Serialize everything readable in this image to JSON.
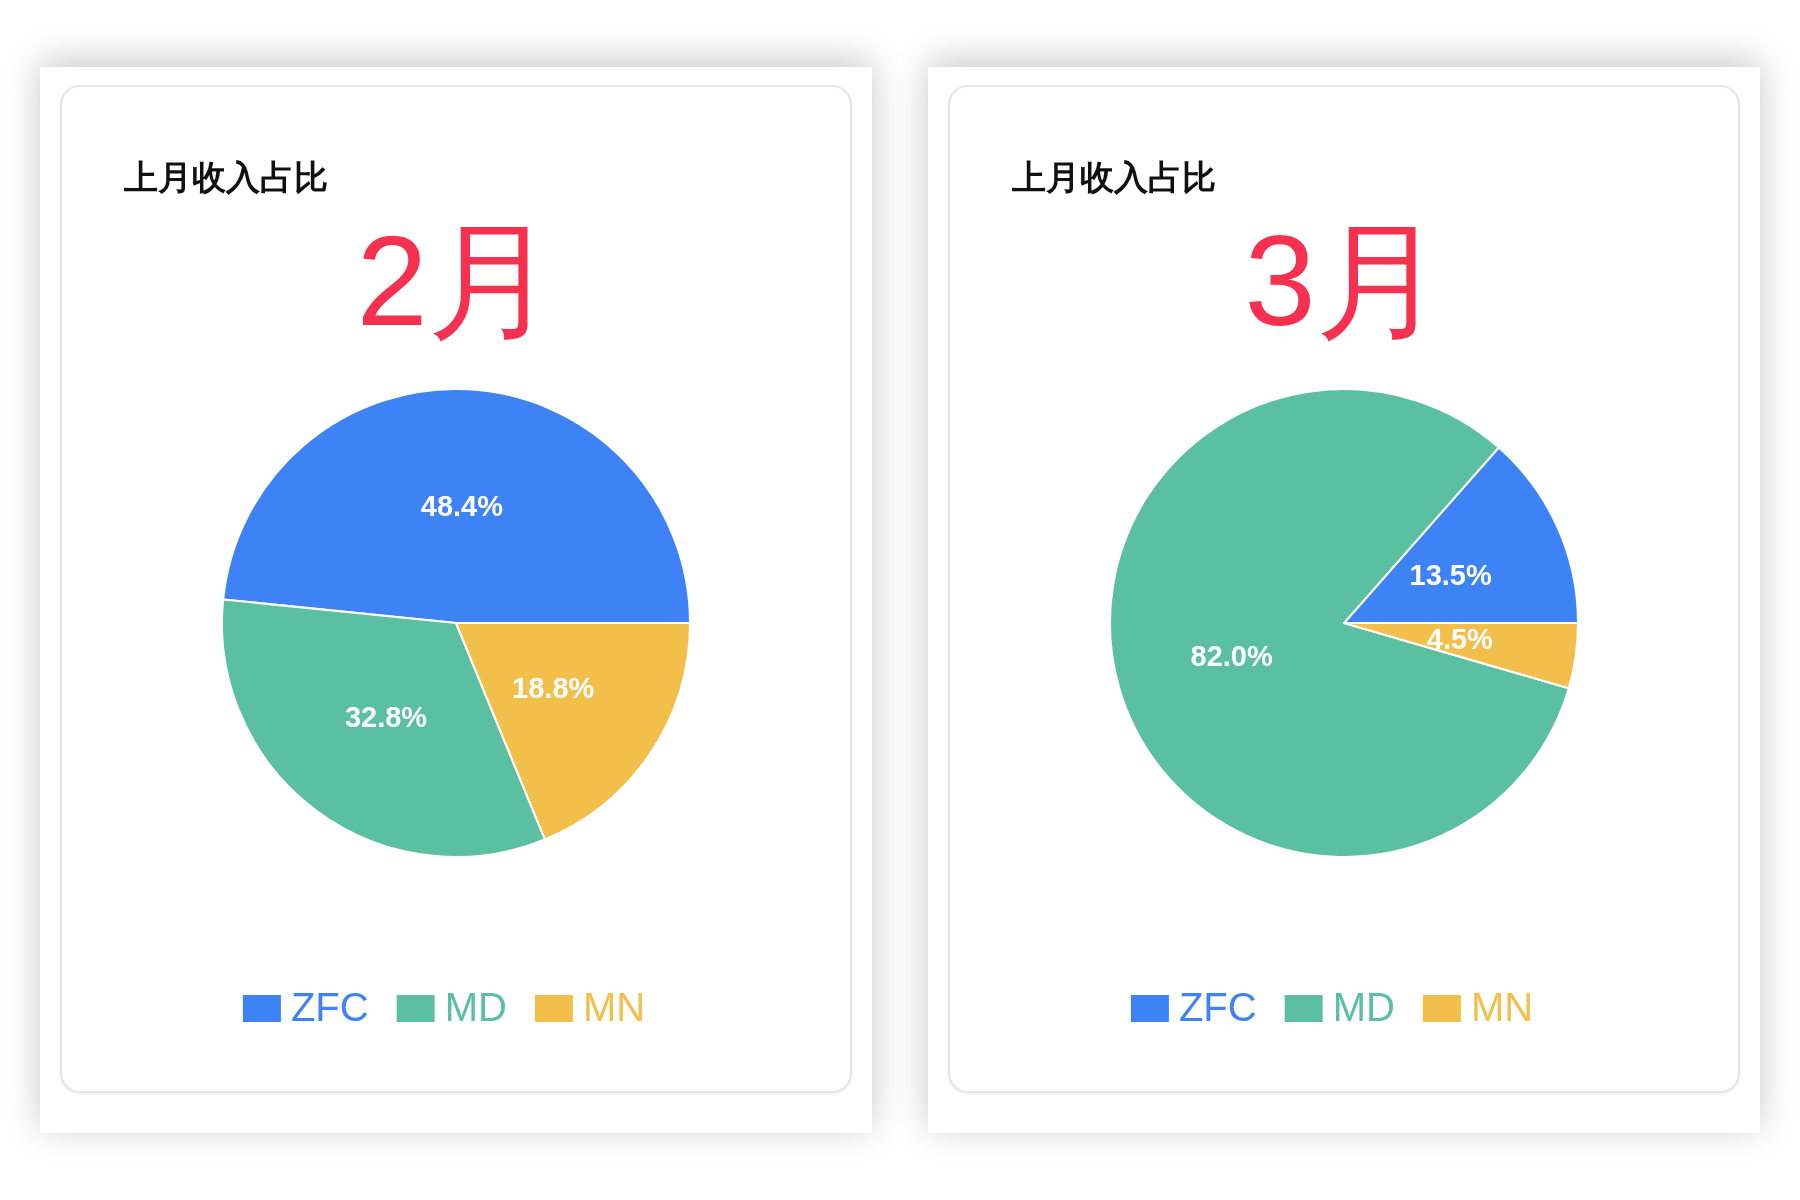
{
  "chart_data": [
    {
      "type": "pie",
      "title": "上月收入占比",
      "subtitle": "2月",
      "categories": [
        "ZFC",
        "MD",
        "MN"
      ],
      "values": [
        48.4,
        32.8,
        18.8
      ],
      "colors": [
        "#3d83f5",
        "#5bbfa1",
        "#f2bf4a"
      ],
      "value_labels": [
        "48.4%",
        "32.8%",
        "18.8%"
      ],
      "legend": "bottom"
    },
    {
      "type": "pie",
      "title": "上月收入占比",
      "subtitle": "3月",
      "categories": [
        "ZFC",
        "MD",
        "MN"
      ],
      "values": [
        13.5,
        82.0,
        4.5
      ],
      "colors": [
        "#3d83f5",
        "#5bbfa1",
        "#f2bf4a"
      ],
      "value_labels": [
        "13.5%",
        "82.0%",
        "4.5%"
      ],
      "legend": "bottom"
    }
  ]
}
